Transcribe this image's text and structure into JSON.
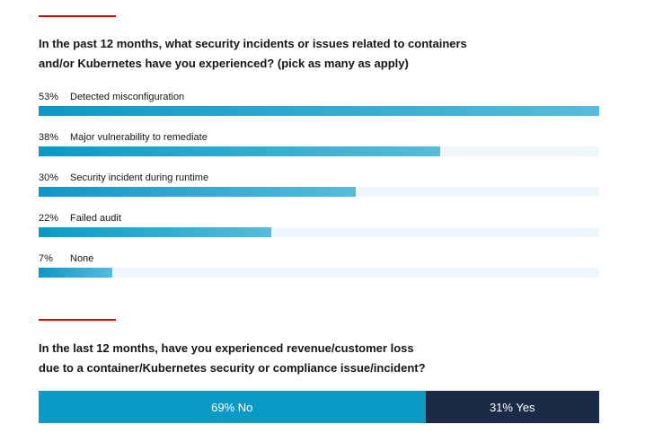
{
  "colors": {
    "accent_rule": "#e00000",
    "bar_fill": "#0b99c6",
    "bar_track": "#eef7fb",
    "no_segment": "#0b99c6",
    "yes_segment": "#1b2a47"
  },
  "question1": {
    "line1": "In the past 12 months, what security incidents or issues related to containers",
    "line2": "and/or Kubernetes have you experienced? (pick as many as apply)"
  },
  "question2": {
    "line1": "In the last 12 months, have you experienced revenue/customer loss",
    "line2": "due to a container/Kubernetes security or compliance issue/incident?"
  },
  "chart_data": [
    {
      "type": "bar",
      "orientation": "horizontal",
      "categories": [
        "Detected misconfiguration",
        "Major vulnerability to remediate",
        "Security incident during runtime",
        "Failed audit",
        "None"
      ],
      "values": [
        53,
        38,
        30,
        22,
        7
      ],
      "value_labels": [
        "53%",
        "38%",
        "30%",
        "22%",
        "7%"
      ],
      "xlim": [
        0,
        53
      ]
    },
    {
      "type": "bar",
      "orientation": "horizontal-stacked",
      "categories": [
        "No",
        "Yes"
      ],
      "values": [
        69,
        31
      ],
      "value_labels": [
        "69% No",
        "31% Yes"
      ]
    }
  ]
}
